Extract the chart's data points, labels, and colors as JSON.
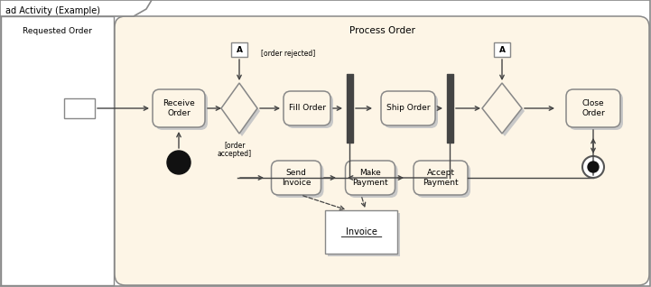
{
  "title": "ad Activity (Example)",
  "bg_outer": "#ffffff",
  "bg_inner": "#fdf5e6",
  "border_color": "#888888",
  "text_color": "#000000",
  "arrow_color": "#555555",
  "swim_lane_label": "Requested Order",
  "process_box_label": "Process Order",
  "fig_w": 7.21,
  "fig_h": 3.18,
  "dpi": 100
}
